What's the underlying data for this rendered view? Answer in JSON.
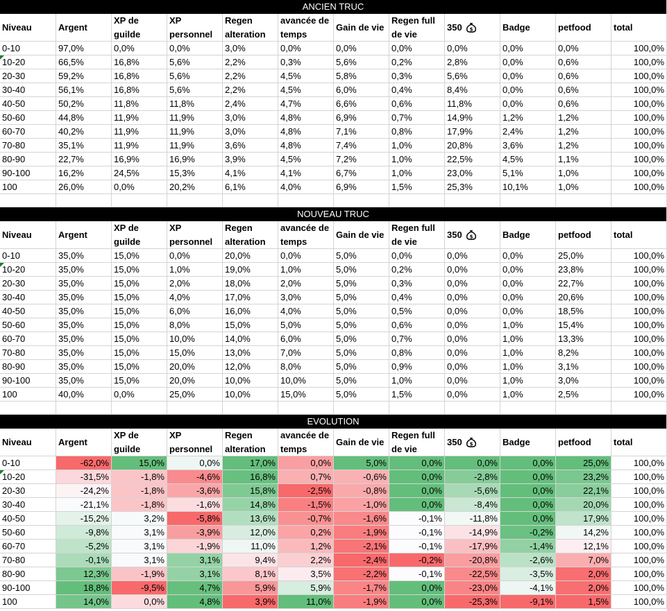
{
  "sections": [
    {
      "title": "ANCIEN TRUC",
      "headers": [
        "Niveau",
        "Argent",
        "XP de guilde",
        "XP personnel",
        "Regen alteration",
        "avancée de temps",
        "Gain de vie",
        "Regen full de vie",
        "350",
        "Badge",
        "petfood",
        "total"
      ],
      "rows": [
        [
          "0-10",
          "97,0%",
          "0,0%",
          "0,0%",
          "3,0%",
          "0,0%",
          "0,0%",
          "0,0%",
          "0,0%",
          "0,0%",
          "0,0%",
          "100,0%"
        ],
        [
          "10-20",
          "66,5%",
          "16,8%",
          "5,6%",
          "2,2%",
          "0,3%",
          "5,6%",
          "0,2%",
          "2,8%",
          "0,0%",
          "0,6%",
          "100,0%"
        ],
        [
          "20-30",
          "59,2%",
          "16,8%",
          "5,6%",
          "2,2%",
          "4,5%",
          "5,8%",
          "0,3%",
          "5,6%",
          "0,0%",
          "0,6%",
          "100,0%"
        ],
        [
          "30-40",
          "56,1%",
          "16,8%",
          "5,6%",
          "2,2%",
          "4,5%",
          "6,0%",
          "0,4%",
          "8,4%",
          "0,0%",
          "0,6%",
          "100,0%"
        ],
        [
          "40-50",
          "50,2%",
          "11,8%",
          "11,8%",
          "2,4%",
          "4,7%",
          "6,6%",
          "0,6%",
          "11,8%",
          "0,0%",
          "0,6%",
          "100,0%"
        ],
        [
          "50-60",
          "44,8%",
          "11,9%",
          "11,9%",
          "3,0%",
          "4,8%",
          "6,9%",
          "0,7%",
          "14,9%",
          "1,2%",
          "1,2%",
          "100,0%"
        ],
        [
          "60-70",
          "40,2%",
          "11,9%",
          "11,9%",
          "3,0%",
          "4,8%",
          "7,1%",
          "0,8%",
          "17,9%",
          "2,4%",
          "1,2%",
          "100,0%"
        ],
        [
          "70-80",
          "35,1%",
          "11,9%",
          "11,9%",
          "3,6%",
          "4,8%",
          "7,4%",
          "1,0%",
          "20,8%",
          "3,6%",
          "1,2%",
          "100,0%"
        ],
        [
          "80-90",
          "22,7%",
          "16,9%",
          "16,9%",
          "3,9%",
          "4,5%",
          "7,2%",
          "1,0%",
          "22,5%",
          "4,5%",
          "1,1%",
          "100,0%"
        ],
        [
          "90-100",
          "16,2%",
          "24,5%",
          "15,3%",
          "4,1%",
          "4,1%",
          "6,7%",
          "1,0%",
          "23,0%",
          "5,1%",
          "1,0%",
          "100,0%"
        ],
        [
          "100",
          "26,0%",
          "0,0%",
          "20,2%",
          "6,1%",
          "4,0%",
          "6,9%",
          "1,5%",
          "25,3%",
          "10,1%",
          "1,0%",
          "100,0%"
        ]
      ]
    },
    {
      "title": "NOUVEAU TRUC",
      "headers": [
        "Niveau",
        "Argent",
        "XP de guilde",
        "XP personnel",
        "Regen alteration",
        "avancée de temps",
        "Gain de vie",
        "Regen full de vie",
        "350",
        "Badge",
        "petfood",
        "total"
      ],
      "rows": [
        [
          "0-10",
          "35,0%",
          "15,0%",
          "0,0%",
          "20,0%",
          "0,0%",
          "5,0%",
          "0,0%",
          "0,0%",
          "0,0%",
          "25,0%",
          "100,0%"
        ],
        [
          "10-20",
          "35,0%",
          "15,0%",
          "1,0%",
          "19,0%",
          "1,0%",
          "5,0%",
          "0,2%",
          "0,0%",
          "0,0%",
          "23,8%",
          "100,0%"
        ],
        [
          "20-30",
          "35,0%",
          "15,0%",
          "2,0%",
          "18,0%",
          "2,0%",
          "5,0%",
          "0,3%",
          "0,0%",
          "0,0%",
          "22,7%",
          "100,0%"
        ],
        [
          "30-40",
          "35,0%",
          "15,0%",
          "4,0%",
          "17,0%",
          "3,0%",
          "5,0%",
          "0,4%",
          "0,0%",
          "0,0%",
          "20,6%",
          "100,0%"
        ],
        [
          "40-50",
          "35,0%",
          "15,0%",
          "6,0%",
          "16,0%",
          "4,0%",
          "5,0%",
          "0,5%",
          "0,0%",
          "0,0%",
          "18,5%",
          "100,0%"
        ],
        [
          "50-60",
          "35,0%",
          "15,0%",
          "8,0%",
          "15,0%",
          "5,0%",
          "5,0%",
          "0,6%",
          "0,0%",
          "1,0%",
          "15,4%",
          "100,0%"
        ],
        [
          "60-70",
          "35,0%",
          "15,0%",
          "10,0%",
          "14,0%",
          "6,0%",
          "5,0%",
          "0,7%",
          "0,0%",
          "1,0%",
          "13,3%",
          "100,0%"
        ],
        [
          "70-80",
          "35,0%",
          "15,0%",
          "15,0%",
          "13,0%",
          "7,0%",
          "5,0%",
          "0,8%",
          "0,0%",
          "1,0%",
          "8,2%",
          "100,0%"
        ],
        [
          "80-90",
          "35,0%",
          "15,0%",
          "20,0%",
          "12,0%",
          "8,0%",
          "5,0%",
          "0,9%",
          "0,0%",
          "1,0%",
          "3,1%",
          "100,0%"
        ],
        [
          "90-100",
          "35,0%",
          "15,0%",
          "20,0%",
          "10,0%",
          "10,0%",
          "5,0%",
          "1,0%",
          "0,0%",
          "1,0%",
          "3,0%",
          "100,0%"
        ],
        [
          "100",
          "40,0%",
          "0,0%",
          "25,0%",
          "10,0%",
          "15,0%",
          "5,0%",
          "1,5%",
          "0,0%",
          "1,0%",
          "2,5%",
          "100,0%"
        ]
      ]
    },
    {
      "title": "EVOLUTION",
      "headers": [
        "Niveau",
        "Argent",
        "XP de guilde",
        "XP personnel",
        "Regen alteration",
        "avancée de temps",
        "Gain de vie",
        "Regen full de vie",
        "350",
        "Badge",
        "petfood",
        "total"
      ],
      "rows": [
        [
          "0-10",
          "-62,0%",
          "15,0%",
          "0,0%",
          "17,0%",
          "0,0%",
          "5,0%",
          "0,0%",
          "0,0%",
          "0,0%",
          "25,0%",
          "100,0%"
        ],
        [
          "10-20",
          "-31,5%",
          "-1,8%",
          "-4,6%",
          "16,8%",
          "0,7%",
          "-0,6%",
          "0,0%",
          "-2,8%",
          "0,0%",
          "23,2%",
          "100,0%"
        ],
        [
          "20-30",
          "-24,2%",
          "-1,8%",
          "-3,6%",
          "15,8%",
          "-2,5%",
          "-0,8%",
          "0,0%",
          "-5,6%",
          "0,0%",
          "22,1%",
          "100,0%"
        ],
        [
          "30-40",
          "-21,1%",
          "-1,8%",
          "-1,6%",
          "14,8%",
          "-1,5%",
          "-1,0%",
          "0,0%",
          "-8,4%",
          "0,0%",
          "20,0%",
          "100,0%"
        ],
        [
          "40-50",
          "-15,2%",
          "3,2%",
          "-5,8%",
          "13,6%",
          "-0,7%",
          "-1,6%",
          "-0,1%",
          "-11,8%",
          "0,0%",
          "17,9%",
          "100,0%"
        ],
        [
          "50-60",
          "-9,8%",
          "3,1%",
          "-3,9%",
          "12,0%",
          "0,2%",
          "-1,9%",
          "-0,1%",
          "-14,9%",
          "-0,2%",
          "14,2%",
          "100,0%"
        ],
        [
          "60-70",
          "-5,2%",
          "3,1%",
          "-1,9%",
          "11,0%",
          "1,2%",
          "-2,1%",
          "-0,1%",
          "-17,9%",
          "-1,4%",
          "12,1%",
          "100,0%"
        ],
        [
          "70-80",
          "-0,1%",
          "3,1%",
          "3,1%",
          "9,4%",
          "2,2%",
          "-2,4%",
          "-0,2%",
          "-20,8%",
          "-2,6%",
          "7,0%",
          "100,0%"
        ],
        [
          "80-90",
          "12,3%",
          "-1,9%",
          "3,1%",
          "8,1%",
          "3,5%",
          "-2,2%",
          "-0,1%",
          "-22,5%",
          "-3,5%",
          "2,0%",
          "100,0%"
        ],
        [
          "90-100",
          "18,8%",
          "-9,5%",
          "4,7%",
          "5,9%",
          "5,9%",
          "-1,7%",
          "0,0%",
          "-23,0%",
          "-4,1%",
          "2,0%",
          "100,0%"
        ],
        [
          "100",
          "14,0%",
          "0,0%",
          "4,8%",
          "3,9%",
          "11,0%",
          "-1,9%",
          "0,0%",
          "-25,3%",
          "-9,1%",
          "1,5%",
          "100,0%"
        ]
      ]
    }
  ],
  "colors": {
    "green_strong": "#63be7b",
    "red_strong": "#f8696b",
    "neutral": "#fcfcff",
    "gridline": "#d4d4d4"
  },
  "icons": {
    "money_bag": "money-bag-icon"
  }
}
